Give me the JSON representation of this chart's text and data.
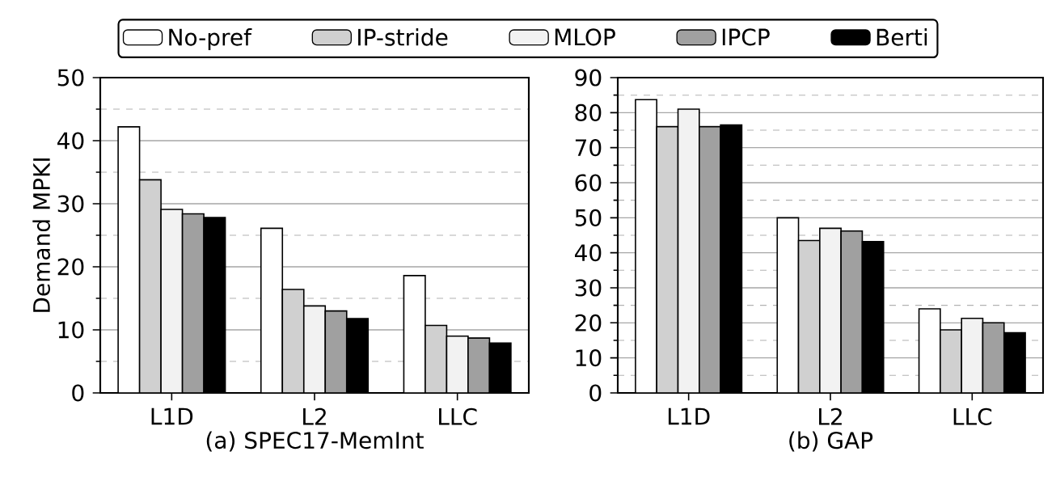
{
  "chart_data": [
    {
      "type": "bar",
      "xlabel": "(a) SPEC17-MemInt",
      "ylabel": "Demand MPKI",
      "categories": [
        "L1D",
        "L2",
        "LLC"
      ],
      "series": [
        {
          "name": "No-pref",
          "color": "#ffffff",
          "values": [
            42.2,
            26.1,
            18.6
          ]
        },
        {
          "name": "IP-stride",
          "color": "#d0d0d0",
          "values": [
            33.8,
            16.4,
            10.7
          ]
        },
        {
          "name": "MLOP",
          "color": "#f2f2f2",
          "values": [
            29.1,
            13.8,
            9.0
          ]
        },
        {
          "name": "IPCP",
          "color": "#a0a0a0",
          "values": [
            28.4,
            13.0,
            8.7
          ]
        },
        {
          "name": "Berti",
          "color": "#000000",
          "values": [
            27.8,
            11.8,
            7.9
          ]
        }
      ],
      "ylim": [
        0,
        50
      ],
      "yticks": [
        0,
        10,
        20,
        30,
        40,
        50
      ],
      "grid": "y",
      "legend": "top"
    },
    {
      "type": "bar",
      "xlabel": "(b) GAP",
      "categories": [
        "L1D",
        "L2",
        "LLC"
      ],
      "series": [
        {
          "color": "#ffffff",
          "values": [
            83.7,
            50.0,
            24.0
          ]
        },
        {
          "color": "#d0d0d0",
          "values": [
            76.0,
            43.5,
            18.0
          ]
        },
        {
          "color": "#f2f2f2",
          "values": [
            81.0,
            47.0,
            21.3
          ]
        },
        {
          "color": "#a0a0a0",
          "values": [
            76.0,
            46.2,
            20.0
          ]
        },
        {
          "color": "#000000",
          "values": [
            76.5,
            43.2,
            17.2
          ]
        }
      ],
      "ylim": [
        0,
        90
      ],
      "yticks": [
        0,
        10,
        20,
        30,
        40,
        50,
        60,
        70,
        80,
        90
      ],
      "grid": "y"
    }
  ]
}
